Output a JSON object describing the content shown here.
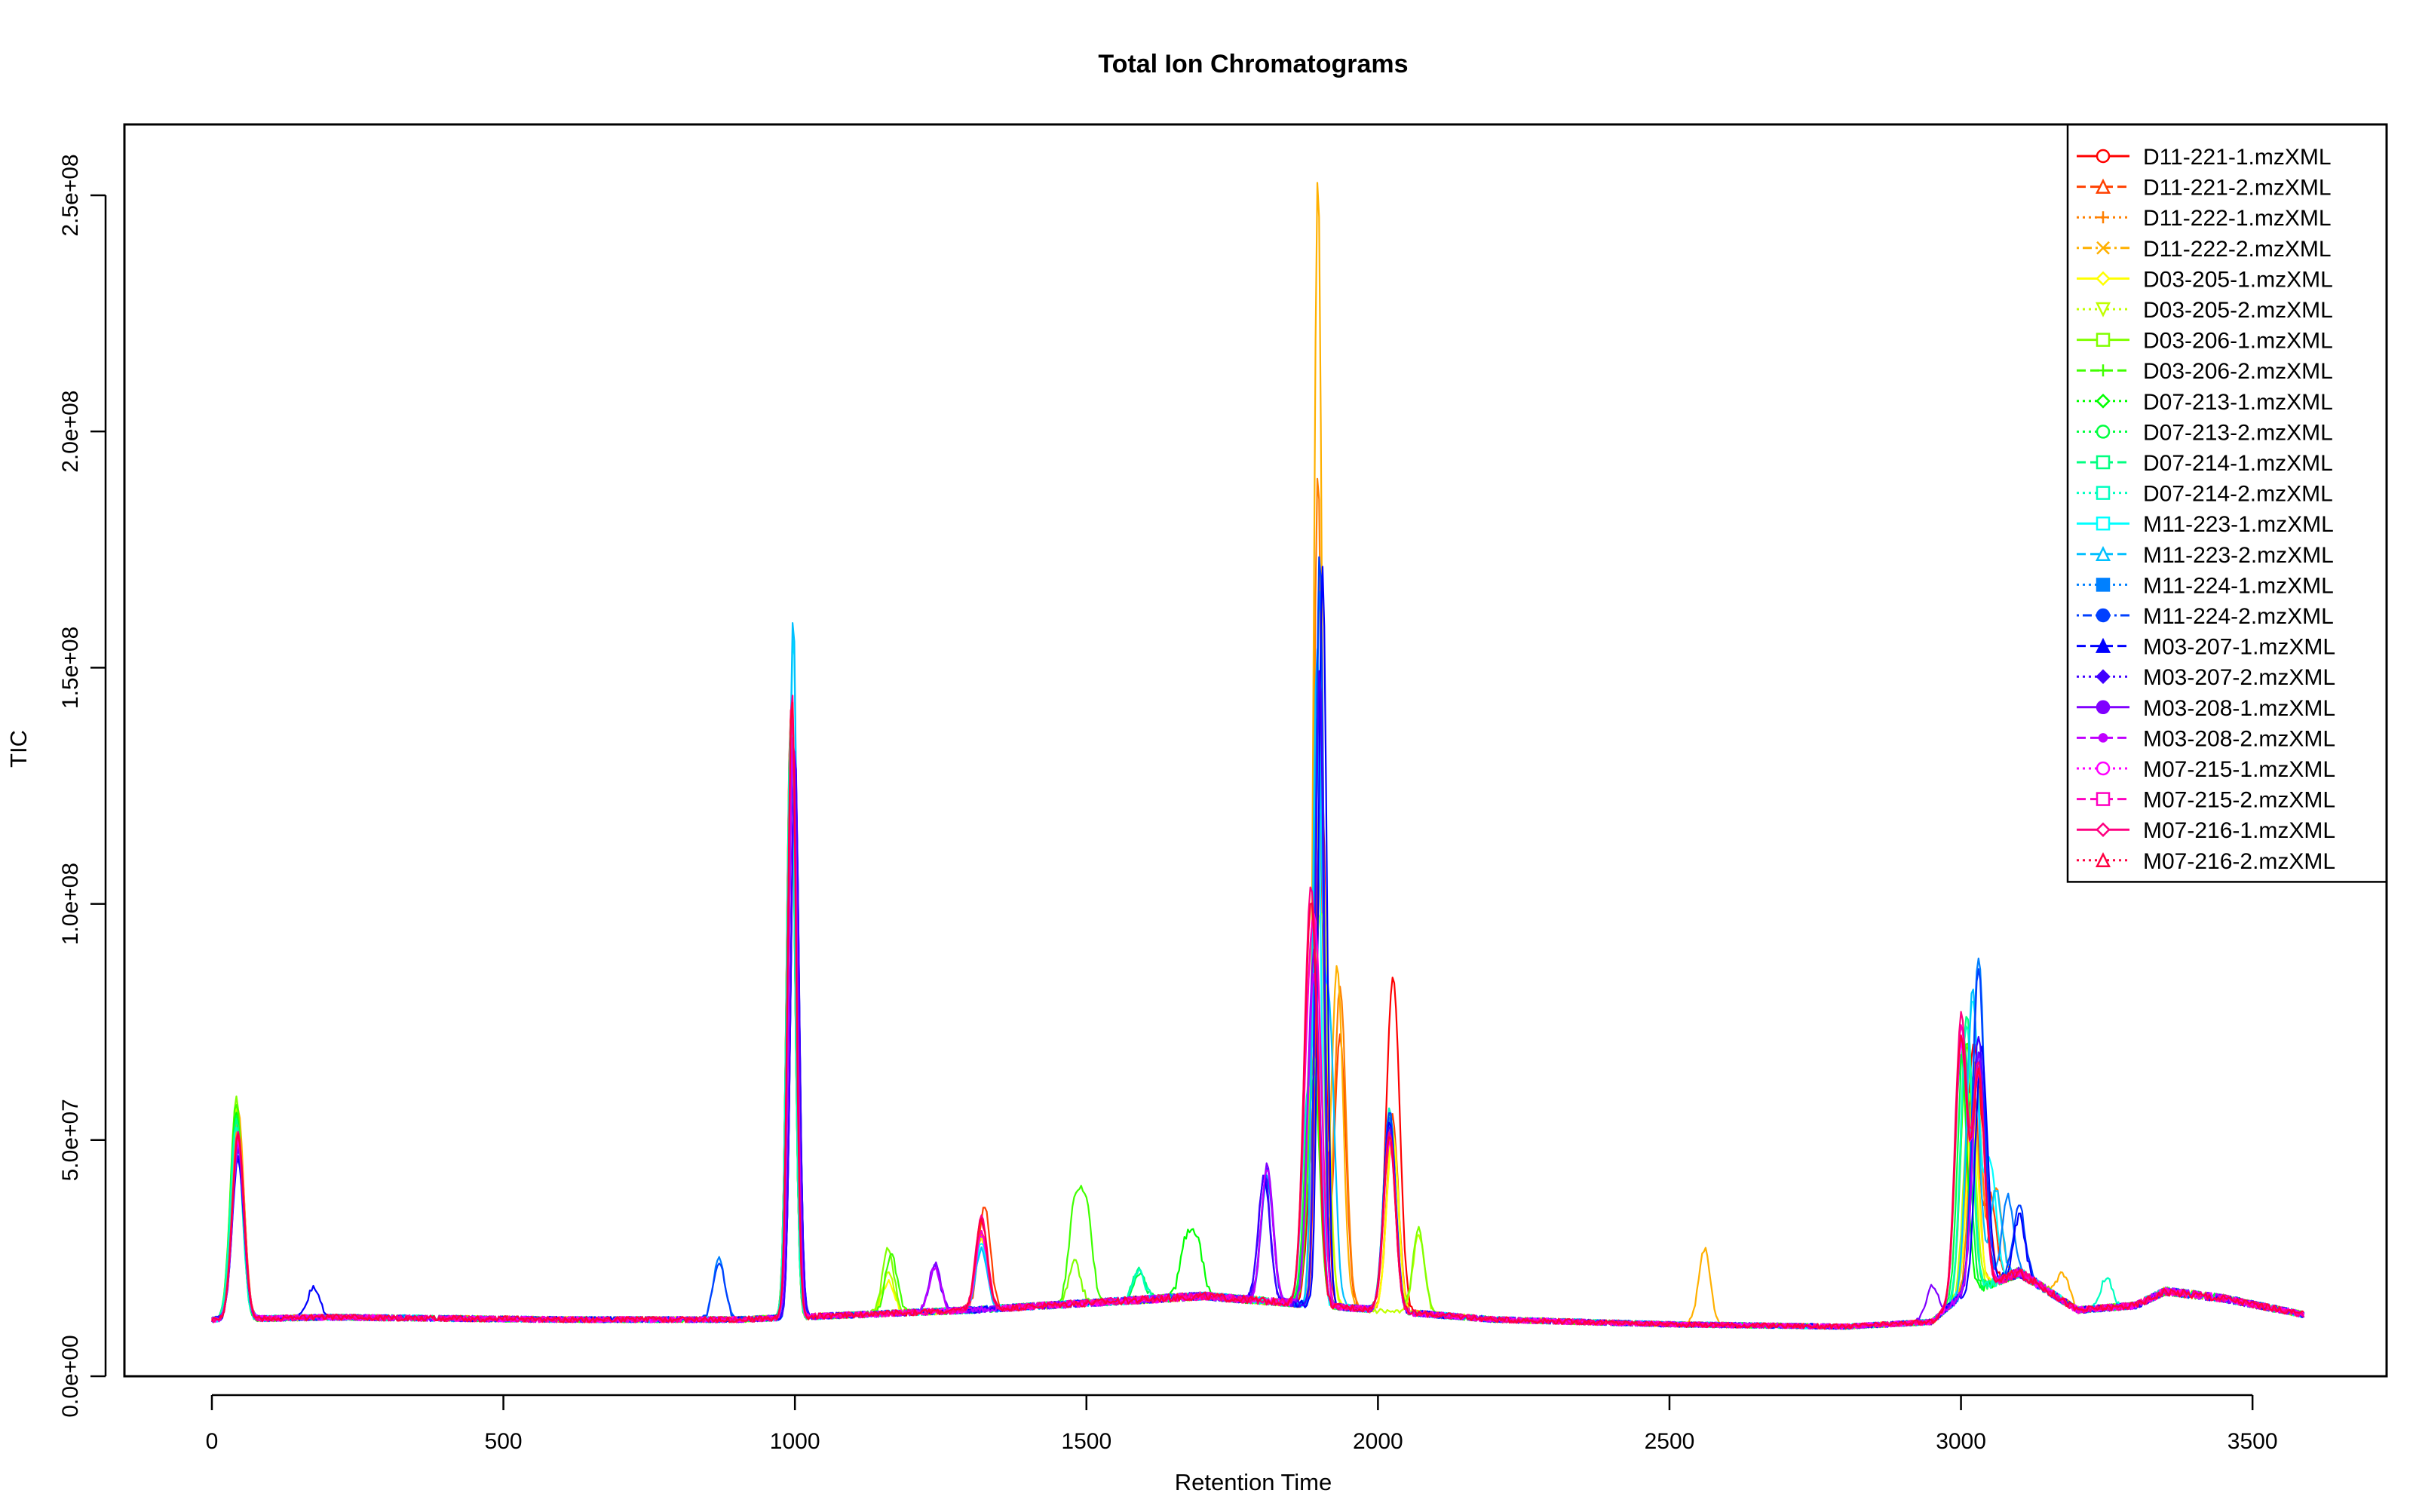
{
  "chart_data": {
    "type": "line",
    "title": "Total Ion Chromatograms",
    "xlabel": "Retention Time",
    "ylabel": "TIC",
    "xlim": [
      -150,
      3730
    ],
    "ylim": [
      0,
      265000000
    ],
    "x_ticks": [
      0,
      500,
      1000,
      1500,
      2000,
      2500,
      3000,
      3500
    ],
    "x_tick_labels": [
      "0",
      "500",
      "1000",
      "1500",
      "2000",
      "2500",
      "3000",
      "3500"
    ],
    "y_ticks": [
      0,
      50000000,
      100000000,
      150000000,
      200000000,
      250000000
    ],
    "y_tick_labels": [
      "0.0e+00",
      "5.0e+07",
      "1.0e+08",
      "1.5e+08",
      "2.0e+08",
      "2.5e+08"
    ],
    "legend_position": "top-right",
    "grid": false,
    "baseline_profile": [
      [
        0,
        12000000
      ],
      [
        200,
        12500000
      ],
      [
        600,
        12000000
      ],
      [
        900,
        12000000
      ],
      [
        1300,
        14000000
      ],
      [
        1500,
        15500000
      ],
      [
        1700,
        17000000
      ],
      [
        1800,
        16000000
      ],
      [
        2000,
        14000000
      ],
      [
        2200,
        12000000
      ],
      [
        2500,
        11000000
      ],
      [
        2800,
        10500000
      ],
      [
        2950,
        11500000
      ],
      [
        3000,
        17000000
      ],
      [
        3100,
        22000000
      ],
      [
        3200,
        14000000
      ],
      [
        3300,
        15000000
      ],
      [
        3350,
        18000000
      ],
      [
        3450,
        16500000
      ],
      [
        3590,
        13000000
      ]
    ],
    "series": [
      {
        "name": "D11-221-1.mzXML",
        "color": "#FF0000",
        "marker": "circle-open",
        "dash": "solid",
        "peaks": [
          [
            45,
            54000000
          ],
          [
            993,
            141000000
          ],
          [
            1320,
            31000000
          ],
          [
            1890,
            51000000
          ],
          [
            1905,
            114000000
          ],
          [
            2020,
            49000000
          ],
          [
            2030,
            59000000
          ],
          [
            3020,
            67000000
          ],
          [
            3040,
            42000000
          ]
        ]
      },
      {
        "name": "D11-221-2.mzXML",
        "color": "#FF4000",
        "marker": "triangle-open",
        "dash": "dashed",
        "peaks": [
          [
            45,
            55000000
          ],
          [
            993,
            140000000
          ],
          [
            1325,
            36000000
          ],
          [
            1900,
            119000000
          ],
          [
            1935,
            72000000
          ],
          [
            2025,
            55000000
          ],
          [
            3020,
            63000000
          ],
          [
            3050,
            38000000
          ]
        ]
      },
      {
        "name": "D11-222-1.mzXML",
        "color": "#FF8000",
        "marker": "plus",
        "dash": "dotted",
        "peaks": [
          [
            45,
            53000000
          ],
          [
            993,
            139000000
          ],
          [
            1320,
            30000000
          ],
          [
            1897,
            192000000
          ],
          [
            1935,
            83000000
          ],
          [
            2025,
            52000000
          ],
          [
            3025,
            66000000
          ],
          [
            3060,
            40000000
          ]
        ]
      },
      {
        "name": "D11-222-2.mzXML",
        "color": "#FFB000",
        "marker": "cross",
        "dash": "dotdash",
        "peaks": [
          [
            45,
            56000000
          ],
          [
            993,
            140000000
          ],
          [
            1320,
            29000000
          ],
          [
            1897,
            255000000
          ],
          [
            1930,
            87000000
          ],
          [
            2025,
            51000000
          ],
          [
            2560,
            27000000
          ],
          [
            3020,
            59000000
          ],
          [
            3175,
            22000000
          ]
        ]
      },
      {
        "name": "D03-205-1.mzXML",
        "color": "#FFFF00",
        "marker": "diamond-open",
        "dash": "solid",
        "peaks": [
          [
            42,
            58000000
          ],
          [
            993,
            137000000
          ],
          [
            1160,
            20000000
          ],
          [
            1320,
            29000000
          ],
          [
            1890,
            69000000
          ],
          [
            1905,
            97000000
          ],
          [
            2025,
            52000000
          ],
          [
            3020,
            56000000
          ]
        ]
      },
      {
        "name": "D03-205-2.mzXML",
        "color": "#C0FF00",
        "marker": "triangle-down-open",
        "dash": "dotted",
        "peaks": [
          [
            42,
            57000000
          ],
          [
            993,
            138000000
          ],
          [
            1160,
            22000000
          ],
          [
            1320,
            30000000
          ],
          [
            1885,
            66000000
          ],
          [
            1905,
            90000000
          ],
          [
            2070,
            30000000
          ],
          [
            3015,
            60000000
          ]
        ]
      },
      {
        "name": "D03-206-1.mzXML",
        "color": "#80FF00",
        "marker": "square-x",
        "dash": "solid",
        "peaks": [
          [
            42,
            59000000
          ],
          [
            993,
            139000000
          ],
          [
            1160,
            27000000
          ],
          [
            1480,
            24000000
          ],
          [
            1890,
            68000000
          ],
          [
            2020,
            55000000
          ],
          [
            2070,
            31000000
          ],
          [
            3010,
            70000000
          ]
        ]
      },
      {
        "name": "D03-206-2.mzXML",
        "color": "#40FF00",
        "marker": "asterisk",
        "dash": "dashed",
        "peaks": [
          [
            42,
            58000000
          ],
          [
            993,
            138000000
          ],
          [
            1165,
            26000000
          ],
          [
            1480,
            36000000
          ],
          [
            1500,
            35000000
          ],
          [
            1890,
            64000000
          ],
          [
            2020,
            56000000
          ],
          [
            3010,
            71000000
          ]
        ]
      },
      {
        "name": "D07-213-1.mzXML",
        "color": "#00FF00",
        "marker": "diamond-plus",
        "dash": "dotted",
        "peaks": [
          [
            42,
            56000000
          ],
          [
            993,
            136000000
          ],
          [
            1670,
            28000000
          ],
          [
            1690,
            28000000
          ],
          [
            1885,
            66000000
          ],
          [
            1900,
            125000000
          ],
          [
            2020,
            54000000
          ],
          [
            3000,
            68000000
          ]
        ]
      },
      {
        "name": "D07-213-2.mzXML",
        "color": "#00FF40",
        "marker": "circle-plus",
        "dash": "dotted",
        "peaks": [
          [
            42,
            55000000
          ],
          [
            993,
            137000000
          ],
          [
            1590,
            22000000
          ],
          [
            1885,
            62000000
          ],
          [
            1900,
            128000000
          ],
          [
            2020,
            55000000
          ],
          [
            3005,
            72000000
          ]
        ]
      },
      {
        "name": "D07-214-1.mzXML",
        "color": "#00FF80",
        "marker": "star-square",
        "dash": "dashed",
        "peaks": [
          [
            42,
            54000000
          ],
          [
            993,
            138000000
          ],
          [
            1590,
            23000000
          ],
          [
            1880,
            60000000
          ],
          [
            1900,
            132000000
          ],
          [
            2020,
            56000000
          ],
          [
            3010,
            77000000
          ]
        ]
      },
      {
        "name": "D07-214-2.mzXML",
        "color": "#00FFC0",
        "marker": "square-plus",
        "dash": "dotted",
        "peaks": [
          [
            42,
            53000000
          ],
          [
            993,
            139000000
          ],
          [
            1590,
            22000000
          ],
          [
            1880,
            58000000
          ],
          [
            1900,
            135000000
          ],
          [
            2020,
            57000000
          ],
          [
            3010,
            75000000
          ],
          [
            3250,
            21000000
          ]
        ]
      },
      {
        "name": "M11-223-1.mzXML",
        "color": "#00FFFF",
        "marker": "square-x",
        "dash": "solid",
        "peaks": [
          [
            45,
            50000000
          ],
          [
            997,
            158000000
          ],
          [
            1320,
            28000000
          ],
          [
            1895,
            142000000
          ],
          [
            2020,
            52000000
          ],
          [
            3020,
            80000000
          ],
          [
            3050,
            45000000
          ]
        ]
      },
      {
        "name": "M11-223-2.mzXML",
        "color": "#00C0FF",
        "marker": "triangle-square",
        "dash": "dashed",
        "peaks": [
          [
            45,
            49000000
          ],
          [
            997,
            161000000
          ],
          [
            1320,
            27000000
          ],
          [
            1895,
            145000000
          ],
          [
            1915,
            80000000
          ],
          [
            2020,
            53000000
          ],
          [
            3020,
            82000000
          ],
          [
            3060,
            40000000
          ]
        ]
      },
      {
        "name": "M11-224-1.mzXML",
        "color": "#0080FF",
        "marker": "square-filled",
        "dash": "dotted",
        "peaks": [
          [
            45,
            48000000
          ],
          [
            870,
            25000000
          ],
          [
            1000,
            131000000
          ],
          [
            1810,
            42000000
          ],
          [
            1900,
            168000000
          ],
          [
            2020,
            55000000
          ],
          [
            3030,
            89000000
          ],
          [
            3080,
            38000000
          ]
        ]
      },
      {
        "name": "M11-224-2.mzXML",
        "color": "#0040FF",
        "marker": "circle-filled",
        "dash": "dotdash",
        "peaks": [
          [
            45,
            47000000
          ],
          [
            870,
            24000000
          ],
          [
            1000,
            130000000
          ],
          [
            1810,
            44000000
          ],
          [
            1900,
            175000000
          ],
          [
            2020,
            56000000
          ],
          [
            3030,
            86000000
          ],
          [
            3100,
            36000000
          ]
        ]
      },
      {
        "name": "M03-207-1.mzXML",
        "color": "#0000FF",
        "marker": "triangle-filled",
        "dash": "dashed",
        "peaks": [
          [
            45,
            46000000
          ],
          [
            175,
            19000000
          ],
          [
            1000,
            132000000
          ],
          [
            1805,
            42000000
          ],
          [
            1905,
            172000000
          ],
          [
            2020,
            54000000
          ],
          [
            3035,
            70000000
          ],
          [
            3100,
            34000000
          ]
        ]
      },
      {
        "name": "M03-207-2.mzXML",
        "color": "#4000FF",
        "marker": "diamond-filled",
        "dash": "dotted",
        "peaks": [
          [
            45,
            47000000
          ],
          [
            1000,
            133000000
          ],
          [
            1240,
            23000000
          ],
          [
            1805,
            43000000
          ],
          [
            1900,
            150000000
          ],
          [
            2020,
            53000000
          ],
          [
            3030,
            72000000
          ]
        ]
      },
      {
        "name": "M03-208-1.mzXML",
        "color": "#8000FF",
        "marker": "circle-filled",
        "dash": "solid",
        "peaks": [
          [
            45,
            48000000
          ],
          [
            997,
            135000000
          ],
          [
            1240,
            24000000
          ],
          [
            1810,
            45000000
          ],
          [
            1890,
            90000000
          ],
          [
            2020,
            52000000
          ],
          [
            2950,
            19000000
          ],
          [
            3030,
            68000000
          ]
        ]
      },
      {
        "name": "M03-208-2.mzXML",
        "color": "#C000FF",
        "marker": "dot",
        "dash": "dashed",
        "peaks": [
          [
            45,
            49000000
          ],
          [
            997,
            136000000
          ],
          [
            1240,
            23000000
          ],
          [
            1810,
            44000000
          ],
          [
            1890,
            85000000
          ],
          [
            2020,
            51000000
          ],
          [
            3030,
            66000000
          ]
        ]
      },
      {
        "name": "M07-215-1.mzXML",
        "color": "#FF00FF",
        "marker": "circle-open",
        "dash": "dotted",
        "peaks": [
          [
            45,
            50000000
          ],
          [
            995,
            140000000
          ],
          [
            1320,
            30000000
          ],
          [
            1880,
            60000000
          ],
          [
            1895,
            78000000
          ],
          [
            2020,
            50000000
          ],
          [
            3000,
            70000000
          ],
          [
            3030,
            64000000
          ]
        ]
      },
      {
        "name": "M07-215-2.mzXML",
        "color": "#FF00C0",
        "marker": "square-open",
        "dash": "dashed",
        "peaks": [
          [
            45,
            51000000
          ],
          [
            995,
            141000000
          ],
          [
            1320,
            31000000
          ],
          [
            1880,
            62000000
          ],
          [
            1895,
            76000000
          ],
          [
            2020,
            51000000
          ],
          [
            3000,
            74000000
          ],
          [
            3030,
            65000000
          ]
        ]
      },
      {
        "name": "M07-216-1.mzXML",
        "color": "#FF0080",
        "marker": "diamond-open",
        "dash": "solid",
        "peaks": [
          [
            45,
            52000000
          ],
          [
            995,
            146000000
          ],
          [
            1320,
            34000000
          ],
          [
            1880,
            63000000
          ],
          [
            1890,
            68000000
          ],
          [
            2020,
            52000000
          ],
          [
            3000,
            76000000
          ],
          [
            3030,
            66000000
          ]
        ]
      },
      {
        "name": "M07-216-2.mzXML",
        "color": "#FF0040",
        "marker": "triangle-open",
        "dash": "dotted",
        "peaks": [
          [
            45,
            51000000
          ],
          [
            995,
            144000000
          ],
          [
            1320,
            33000000
          ],
          [
            1880,
            61000000
          ],
          [
            1890,
            66000000
          ],
          [
            2020,
            51000000
          ],
          [
            3000,
            72000000
          ],
          [
            3030,
            64000000
          ]
        ]
      }
    ]
  }
}
